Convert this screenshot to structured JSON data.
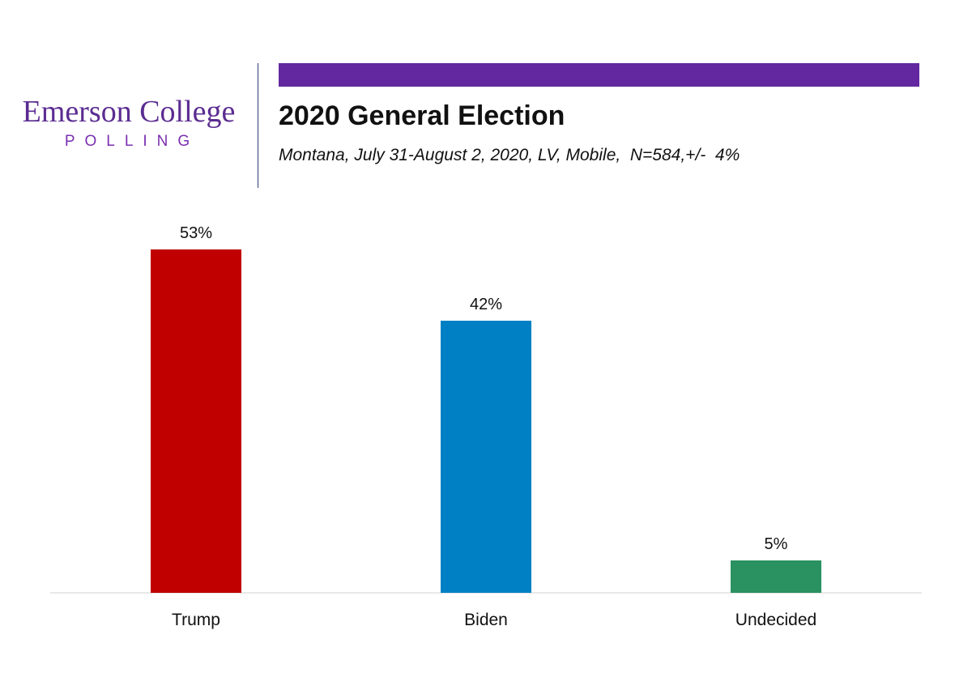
{
  "logo": {
    "name": "Emerson College",
    "sub": "POLLING",
    "color": "#5b2c91"
  },
  "header": {
    "bar_color": "#63289f",
    "title": "2020 General Election",
    "subtitle": "Montana, July 31-August 2, 2020, LV, Mobile,  N=584,+/-  4%"
  },
  "chart_data": {
    "type": "bar",
    "categories": [
      "Trump",
      "Biden",
      "Undecided"
    ],
    "values": [
      53,
      42,
      5
    ],
    "value_labels": [
      "53%",
      "42%",
      "5%"
    ],
    "colors": [
      "#c00000",
      "#0080c4",
      "#2a9160"
    ],
    "ylim": [
      0,
      60
    ],
    "title": "2020 General Election",
    "xlabel": "",
    "ylabel": "",
    "grid": false,
    "legend": "none"
  }
}
